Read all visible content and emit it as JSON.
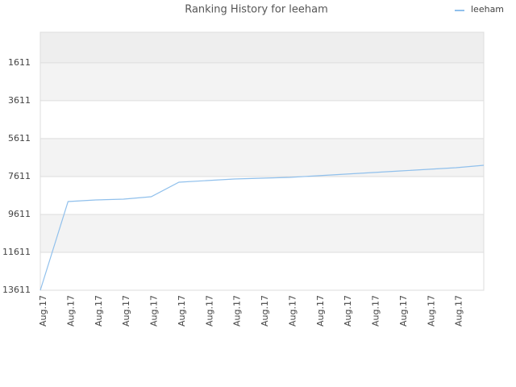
{
  "chart_data": {
    "type": "line",
    "title": "Ranking History for leeham",
    "categories": [
      "Aug.17",
      "Aug.17",
      "Aug.17",
      "Aug.17",
      "Aug.17",
      "Aug.17",
      "Aug.17",
      "Aug.17",
      "Aug.17",
      "Aug.17",
      "Aug.17",
      "Aug.17",
      "Aug.17",
      "Aug.17",
      "Aug.17",
      "Aug.17",
      null
    ],
    "series": [
      {
        "name": "leeham",
        "color": "#90c0ec",
        "values": [
          13611,
          8932,
          8847,
          8805,
          8677,
          7911,
          7826,
          7741,
          7699,
          7656,
          7571,
          7486,
          7401,
          7316,
          7231,
          7146,
          7018
        ]
      }
    ],
    "ylim": [
      13611,
      0
    ],
    "yticks": [
      1611,
      3611,
      5611,
      7611,
      9611,
      11611,
      13611
    ],
    "grid": true,
    "legend": "top-right"
  }
}
